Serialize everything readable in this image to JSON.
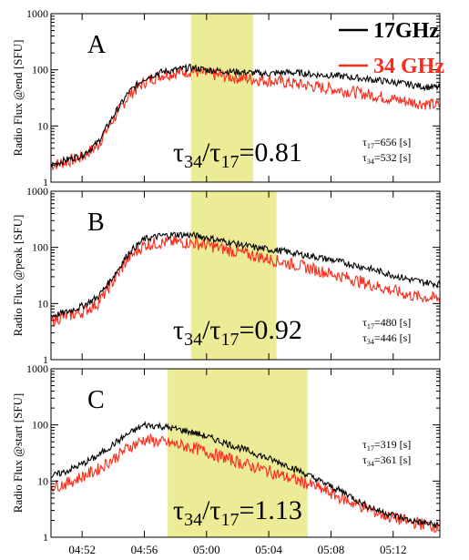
{
  "legend": {
    "series_17": {
      "label": "17GHz",
      "color": "#000000"
    },
    "series_34": {
      "label": "34 GHz",
      "color": "#ff2a1a"
    }
  },
  "x_ticks": [
    "04:52",
    "04:56",
    "05:00",
    "05:04",
    "05:08",
    "05:12"
  ],
  "y_ticks": [
    "1",
    "10",
    "100",
    "1000"
  ],
  "colors": {
    "highlight": "#ecec96",
    "series_17": "#000000",
    "series_34": "#ff2a1a"
  },
  "chart_data": [
    {
      "type": "line",
      "panel_letter": "A",
      "ylabel": "Radio Flux @end [SFU]",
      "y_scale": "log",
      "ylim": [
        1,
        1000
      ],
      "xlim": [
        "04:50",
        "05:15"
      ],
      "highlight_window": [
        "04:59",
        "05:03"
      ],
      "ratio_label": {
        "symbol": "τ",
        "sub1": "34",
        "sub2": "17",
        "value": "0.81"
      },
      "tau_labels": [
        {
          "sub": "17",
          "value": "656 [s]"
        },
        {
          "sub": "34",
          "value": "532 [s]"
        }
      ],
      "x": [
        "04:50",
        "04:51",
        "04:52",
        "04:53",
        "04:54",
        "04:55",
        "04:56",
        "04:57",
        "04:58",
        "04:59",
        "05:00",
        "05:01",
        "05:02",
        "05:03",
        "05:04",
        "05:05",
        "05:06",
        "05:07",
        "05:08",
        "05:09",
        "05:10",
        "05:11",
        "05:12",
        "05:13",
        "05:14",
        "05:15"
      ],
      "series": [
        {
          "name": "17GHz",
          "values": [
            2,
            2.5,
            3,
            5,
            15,
            40,
            70,
            90,
            100,
            110,
            100,
            95,
            92,
            88,
            85,
            90,
            88,
            82,
            80,
            75,
            70,
            65,
            60,
            55,
            50,
            48
          ]
        },
        {
          "name": "34 GHz",
          "values": [
            2,
            2.3,
            2.8,
            4.5,
            13,
            35,
            60,
            80,
            88,
            95,
            85,
            78,
            72,
            68,
            64,
            60,
            55,
            50,
            46,
            42,
            38,
            34,
            30,
            27,
            25,
            23
          ]
        }
      ]
    },
    {
      "type": "line",
      "panel_letter": "B",
      "ylabel": "Radio Flux @peak [SFU]",
      "y_scale": "log",
      "ylim": [
        1,
        1000
      ],
      "xlim": [
        "04:50",
        "05:15"
      ],
      "highlight_window": [
        "04:59",
        "05:04:30"
      ],
      "ratio_label": {
        "symbol": "τ",
        "sub1": "34",
        "sub2": "17",
        "value": "0.92"
      },
      "tau_labels": [
        {
          "sub": "17",
          "value": "480 [s]"
        },
        {
          "sub": "34",
          "value": "446 [s]"
        }
      ],
      "x": [
        "04:50",
        "04:51",
        "04:52",
        "04:53",
        "04:54",
        "04:55",
        "04:56",
        "04:57",
        "04:58",
        "04:59",
        "05:00",
        "05:01",
        "05:02",
        "05:03",
        "05:04",
        "05:05",
        "05:06",
        "05:07",
        "05:08",
        "05:09",
        "05:10",
        "05:11",
        "05:12",
        "05:13",
        "05:14",
        "05:15"
      ],
      "series": [
        {
          "name": "17GHz",
          "values": [
            6,
            7,
            9,
            13,
            30,
            80,
            140,
            160,
            170,
            165,
            150,
            130,
            115,
            100,
            92,
            85,
            75,
            68,
            60,
            52,
            45,
            38,
            32,
            27,
            24,
            22
          ]
        },
        {
          "name": "34 GHz",
          "values": [
            5,
            6,
            7,
            10,
            25,
            65,
            110,
            120,
            125,
            120,
            110,
            95,
            82,
            72,
            62,
            54,
            47,
            40,
            34,
            29,
            24,
            20,
            17,
            14,
            13,
            12
          ]
        }
      ]
    },
    {
      "type": "line",
      "panel_letter": "C",
      "ylabel": "Radio Flux @start [SFU]",
      "y_scale": "log",
      "ylim": [
        1,
        1000
      ],
      "xlim": [
        "04:50",
        "05:15"
      ],
      "highlight_window": [
        "04:57:30",
        "05:06:30"
      ],
      "ratio_label": {
        "symbol": "τ",
        "sub1": "34",
        "sub2": "17",
        "value": "1.13"
      },
      "tau_labels": [
        {
          "sub": "17",
          "value": "319 [s]"
        },
        {
          "sub": "34",
          "value": "361 [s]"
        }
      ],
      "x": [
        "04:50",
        "04:51",
        "04:52",
        "04:53",
        "04:54",
        "04:55",
        "04:56",
        "04:57",
        "04:58",
        "04:59",
        "05:00",
        "05:01",
        "05:02",
        "05:03",
        "05:04",
        "05:05",
        "05:06",
        "05:07",
        "05:08",
        "05:09",
        "05:10",
        "05:11",
        "05:12",
        "05:13",
        "05:14",
        "05:15"
      ],
      "series": [
        {
          "name": "17GHz",
          "values": [
            12,
            15,
            20,
            28,
            45,
            70,
            100,
            95,
            85,
            75,
            62,
            50,
            40,
            32,
            25,
            20,
            15,
            11,
            8,
            6,
            4,
            3,
            2.5,
            2,
            1.8,
            1.6
          ]
        },
        {
          "name": "34 GHz",
          "values": [
            8,
            9,
            12,
            16,
            25,
            40,
            55,
            50,
            45,
            40,
            33,
            27,
            22,
            18,
            15,
            12,
            10,
            8,
            6,
            4.5,
            3.5,
            2.7,
            2.2,
            1.9,
            1.7,
            1.5
          ]
        }
      ]
    }
  ]
}
